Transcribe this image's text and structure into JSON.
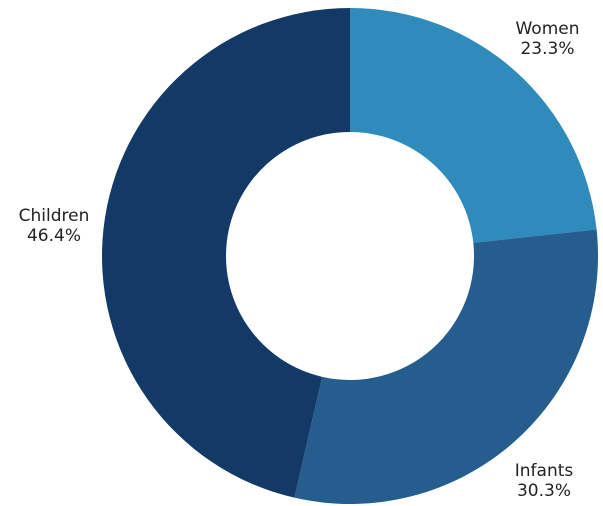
{
  "chart_data": {
    "type": "pie",
    "donut": true,
    "categories": [
      "Women",
      "Infants",
      "Children"
    ],
    "values": [
      23.3,
      30.3,
      46.4
    ],
    "value_labels": [
      "23.3%",
      "30.3%",
      "46.4%"
    ],
    "colors": [
      "#2e8bbb",
      "#265d8f",
      "#133a66"
    ],
    "title": "",
    "legend": "none"
  }
}
